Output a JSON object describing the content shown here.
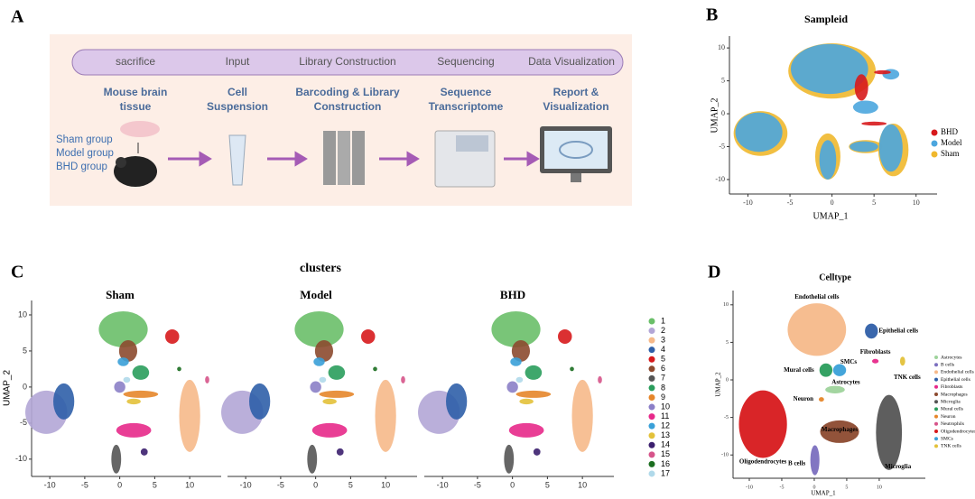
{
  "panel_labels": [
    "A",
    "B",
    "C",
    "D"
  ],
  "workflow": {
    "stages": [
      "sacrifice",
      "Input",
      "Library Construction",
      "Sequencing",
      "Data Visualization"
    ],
    "steps": [
      [
        "Mouse brain",
        "tissue"
      ],
      [
        "Cell",
        "Suspension"
      ],
      [
        "Barcoding & Library",
        "Construction"
      ],
      [
        "Sequence",
        "Transcriptome"
      ],
      [
        "Report &",
        "Visualization"
      ]
    ],
    "groups": [
      "Sham group",
      "Model group",
      "BHD group"
    ]
  },
  "chart_data": [
    {
      "type": "scatter",
      "title": "Sampleid",
      "xlabel": "UMAP_1",
      "ylabel": "UMAP_2",
      "xlim": [
        -12.2,
        12.5
      ],
      "ylim": [
        -12.2,
        11.8
      ],
      "xticks": [
        -10,
        -5,
        0,
        5,
        10
      ],
      "yticks": [
        -10,
        -5,
        0,
        5,
        10
      ],
      "series": [
        {
          "name": "BHD",
          "color": "#d7191c",
          "blobs": [
            {
              "x": 3.5,
              "y": 4,
              "rx": 0.8,
              "ry": 2
            },
            {
              "x": 6,
              "y": 6.3,
              "rx": 1,
              "ry": 0.3
            },
            {
              "x": 5,
              "y": -1.5,
              "rx": 1.5,
              "ry": 0.3
            }
          ]
        },
        {
          "name": "Model",
          "color": "#4ba6de",
          "blobs": [
            {
              "x": -8.7,
              "y": -2.8,
              "rx": 2.8,
              "ry": 3
            },
            {
              "x": -0.3,
              "y": 6.8,
              "rx": 4.6,
              "ry": 3.8
            },
            {
              "x": 7,
              "y": -5.2,
              "rx": 1.4,
              "ry": 3.6
            },
            {
              "x": -0.5,
              "y": -7,
              "rx": 1,
              "ry": 3
            },
            {
              "x": 3.8,
              "y": -5,
              "rx": 1.7,
              "ry": 0.8
            },
            {
              "x": 7,
              "y": 6,
              "rx": 1,
              "ry": 0.8
            },
            {
              "x": 4,
              "y": 1,
              "rx": 1.5,
              "ry": 1
            }
          ]
        },
        {
          "name": "Sham",
          "color": "#f0b82d",
          "blobs": [
            {
              "x": -8.5,
              "y": -3,
              "rx": 3.2,
              "ry": 3.4
            },
            {
              "x": 0,
              "y": 6.5,
              "rx": 5.2,
              "ry": 4.2
            },
            {
              "x": 7.3,
              "y": -5.5,
              "rx": 1.8,
              "ry": 4
            },
            {
              "x": -0.5,
              "y": -6.5,
              "rx": 1.5,
              "ry": 3.5
            },
            {
              "x": 4,
              "y": -5,
              "rx": 2,
              "ry": 1
            }
          ]
        }
      ]
    },
    {
      "type": "scatter",
      "title": "clusters",
      "panels": [
        "Sham",
        "Model",
        "BHD"
      ],
      "ylabel": "UMAP_2",
      "xlim": [
        -12.6,
        14.5
      ],
      "ylim": [
        -12.4,
        12
      ],
      "xticks": [
        -10,
        -5,
        0,
        5,
        10
      ],
      "yticks": [
        -10,
        -5,
        0,
        5,
        10
      ],
      "clusters": [
        {
          "name": "1",
          "color": "#6abf69",
          "x": 0.5,
          "y": 8,
          "rx": 3.5,
          "ry": 2.5
        },
        {
          "name": "2",
          "color": "#b3a6d6",
          "x": -10.5,
          "y": -3.5,
          "rx": 3,
          "ry": 3
        },
        {
          "name": "3",
          "color": "#f6b98a",
          "x": 10,
          "y": -4,
          "rx": 1.5,
          "ry": 5
        },
        {
          "name": "4",
          "color": "#2f5fa8",
          "x": -8,
          "y": -2,
          "rx": 1.5,
          "ry": 2.5
        },
        {
          "name": "5",
          "color": "#d7191c",
          "x": 7.5,
          "y": 7,
          "rx": 1,
          "ry": 1
        },
        {
          "name": "6",
          "color": "#8c4a2f",
          "x": 1.2,
          "y": 5,
          "rx": 1.3,
          "ry": 1.5
        },
        {
          "name": "7",
          "color": "#555555",
          "x": -0.5,
          "y": -10,
          "rx": 0.7,
          "ry": 2
        },
        {
          "name": "8",
          "color": "#2a9d5c",
          "x": 3,
          "y": 2,
          "rx": 1.2,
          "ry": 1
        },
        {
          "name": "9",
          "color": "#e6862a",
          "x": 3,
          "y": -1,
          "rx": 2.5,
          "ry": 0.5
        },
        {
          "name": "10",
          "color": "#8b7fc7",
          "x": 0,
          "y": 0,
          "rx": 0.8,
          "ry": 0.8
        },
        {
          "name": "11",
          "color": "#e7298a",
          "x": 2,
          "y": -6,
          "rx": 2.5,
          "ry": 1
        },
        {
          "name": "12",
          "color": "#3aa0d8",
          "x": 0.5,
          "y": 3.5,
          "rx": 0.8,
          "ry": 0.6
        },
        {
          "name": "13",
          "color": "#e3c13a",
          "x": 2,
          "y": -2,
          "rx": 1,
          "ry": 0.4
        },
        {
          "name": "14",
          "color": "#3b1f6e",
          "x": 3.5,
          "y": -9,
          "rx": 0.5,
          "ry": 0.5
        },
        {
          "name": "15",
          "color": "#d6548a",
          "x": 12.5,
          "y": 1,
          "rx": 0.3,
          "ry": 0.5
        },
        {
          "name": "16",
          "color": "#1b6e20",
          "x": 8.5,
          "y": 2.5,
          "rx": 0.3,
          "ry": 0.3
        },
        {
          "name": "17",
          "color": "#b0d9ea",
          "x": 1,
          "y": 1,
          "rx": 0.5,
          "ry": 0.4
        }
      ]
    },
    {
      "type": "scatter",
      "title": "Celltype",
      "xlabel": "UMAP_1",
      "ylabel": "UMAP_2",
      "xlim": [
        -12.5,
        17.1
      ],
      "ylim": [
        -13.1,
        11.9
      ],
      "xticks": [
        -10,
        -5,
        0,
        5,
        10
      ],
      "yticks": [
        -10,
        -5,
        0,
        5,
        10
      ],
      "celltypes": [
        {
          "name": "Astrocytes",
          "color": "#9ed39b",
          "x": 3.2,
          "y": -1.3,
          "rx": 1.5,
          "ry": 0.5
        },
        {
          "name": "B cells",
          "color": "#7b6fbf",
          "x": 0.1,
          "y": -10.7,
          "rx": 0.7,
          "ry": 2
        },
        {
          "name": "Endothelial cells",
          "color": "#f6b98a",
          "x": 0.4,
          "y": 6.7,
          "rx": 4.5,
          "ry": 3.5
        },
        {
          "name": "Epithelial cells",
          "color": "#2f5fa8",
          "x": 8.8,
          "y": 6.5,
          "rx": 1,
          "ry": 1
        },
        {
          "name": "Fibroblasts",
          "color": "#e7298a",
          "x": 9.4,
          "y": 2.5,
          "rx": 0.5,
          "ry": 0.3
        },
        {
          "name": "Macrophages",
          "color": "#8c4a2f",
          "x": 3.9,
          "y": -6.9,
          "rx": 3,
          "ry": 1.5
        },
        {
          "name": "Microglia",
          "color": "#555555",
          "x": 11.5,
          "y": -7,
          "rx": 2,
          "ry": 5
        },
        {
          "name": "Mural cells",
          "color": "#2a9d5c",
          "x": 1.8,
          "y": 1.3,
          "rx": 1,
          "ry": 0.9
        },
        {
          "name": "Neuron",
          "color": "#e6862a",
          "x": 1.1,
          "y": -2.6,
          "rx": 0.4,
          "ry": 0.3
        },
        {
          "name": "Neutrophils",
          "color": "#d6548a"
        },
        {
          "name": "Oligodendrocytes",
          "color": "#d7191c",
          "x": -7.9,
          "y": -5.9,
          "rx": 3.7,
          "ry": 4.5
        },
        {
          "name": "SMCs",
          "color": "#3aa0d8",
          "x": 3.9,
          "y": 1.3,
          "rx": 1,
          "ry": 0.8
        },
        {
          "name": "TNK cells",
          "color": "#e3c13a",
          "x": 13.6,
          "y": 2.5,
          "rx": 0.4,
          "ry": 0.6
        }
      ]
    }
  ]
}
